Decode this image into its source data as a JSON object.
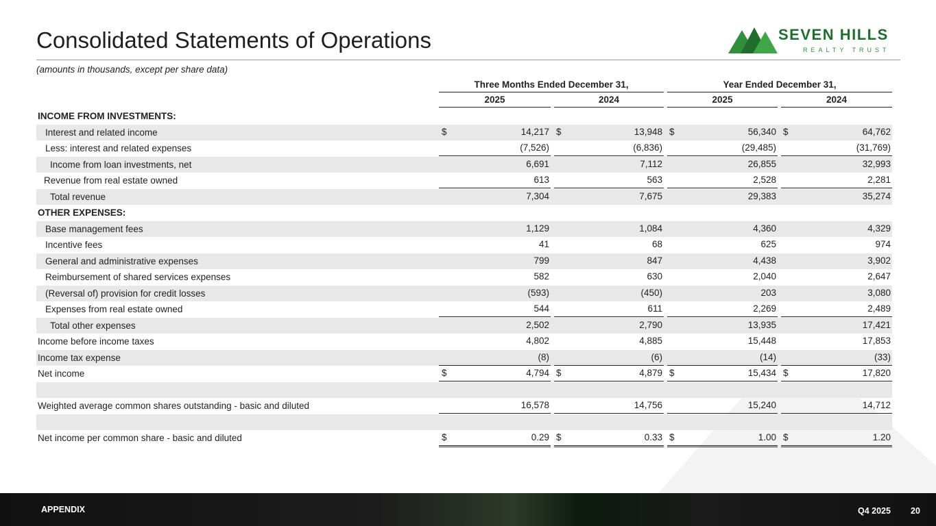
{
  "header": {
    "title": "Consolidated Statements of Operations",
    "subtitle": "(amounts in thousands, except per share data)",
    "logo": {
      "name": "SEVEN HILLS",
      "tagline": "REALTY TRUST"
    }
  },
  "table": {
    "group_headers": [
      "Three Months Ended December 31,",
      "Year Ended December 31,"
    ],
    "columns": [
      "2025",
      "2024",
      "2025",
      "2024"
    ],
    "rows": [
      {
        "label": "INCOME FROM INVESTMENTS:"
      },
      {
        "label": "Interest and related income",
        "currency": "$",
        "values": [
          "14,217",
          "13,948",
          "56,340",
          "64,762"
        ]
      },
      {
        "label": "Less: interest and related expenses",
        "values": [
          "(7,526)",
          "(6,836)",
          "(29,485)",
          "(31,769)"
        ]
      },
      {
        "label": "Income from loan investments, net",
        "values": [
          "6,691",
          "7,112",
          "26,855",
          "32,993"
        ]
      },
      {
        "label": "Revenue from real estate owned",
        "values": [
          "613",
          "563",
          "2,528",
          "2,281"
        ]
      },
      {
        "label": "Total revenue",
        "values": [
          "7,304",
          "7,675",
          "29,383",
          "35,274"
        ]
      },
      {
        "label": "OTHER EXPENSES:"
      },
      {
        "label": "Base management fees",
        "values": [
          "1,129",
          "1,084",
          "4,360",
          "4,329"
        ]
      },
      {
        "label": "Incentive fees",
        "values": [
          "41",
          "68",
          "625",
          "974"
        ]
      },
      {
        "label": "General and administrative expenses",
        "values": [
          "799",
          "847",
          "4,438",
          "3,902"
        ]
      },
      {
        "label": "Reimbursement of shared services expenses",
        "values": [
          "582",
          "630",
          "2,040",
          "2,647"
        ]
      },
      {
        "label": "(Reversal of) provision for credit losses",
        "values": [
          "(593)",
          "(450)",
          "203",
          "3,080"
        ]
      },
      {
        "label": "Expenses from real estate owned",
        "values": [
          "544",
          "611",
          "2,269",
          "2,489"
        ]
      },
      {
        "label": "Total other expenses",
        "values": [
          "2,502",
          "2,790",
          "13,935",
          "17,421"
        ]
      },
      {
        "label": "Income before income taxes",
        "values": [
          "4,802",
          "4,885",
          "15,448",
          "17,853"
        ]
      },
      {
        "label": "Income tax expense",
        "values": [
          "(8)",
          "(6)",
          "(14)",
          "(33)"
        ]
      },
      {
        "label": "Net income",
        "currency": "$",
        "values": [
          "4,794",
          "4,879",
          "15,434",
          "17,820"
        ]
      },
      {},
      {
        "label": "Weighted average common shares outstanding - basic and diluted",
        "values": [
          "16,578",
          "14,756",
          "15,240",
          "14,712"
        ]
      },
      {},
      {
        "label": "Net income per common share - basic and diluted",
        "currency": "$",
        "values": [
          "0.29",
          "0.33",
          "1.00",
          "1.20"
        ]
      }
    ]
  },
  "footer": {
    "section": "APPENDIX",
    "period": "Q4 2025",
    "page": "20"
  }
}
